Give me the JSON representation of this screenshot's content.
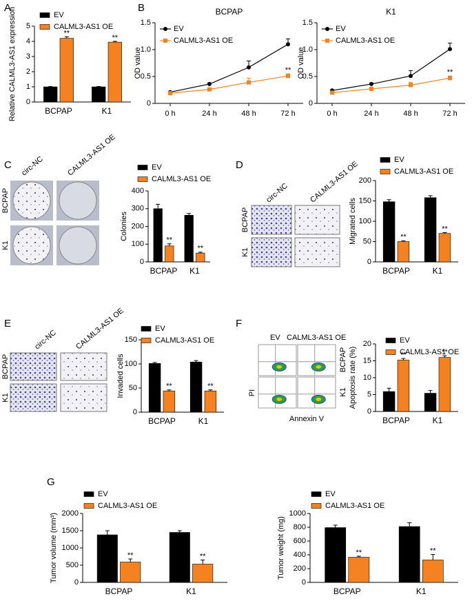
{
  "panel_labels": [
    "A",
    "B",
    "C",
    "D",
    "E",
    "F",
    "G"
  ],
  "image_panels": [
    {
      "columns": [
        "circ-NC",
        "CALML3-AS1 OE"
      ],
      "rows": [
        "BCPAP",
        "K1"
      ]
    },
    {
      "columns": [
        "circ-NC",
        "CALML3-AS1 OE"
      ],
      "rows": [
        "BCPAP",
        "K1"
      ]
    },
    {
      "columns": [
        "circ-NC",
        "CALML3-AS1 OE"
      ],
      "rows": [
        "BCPAP",
        "K1"
      ]
    },
    {
      "columns": [
        "EV",
        "CALML3-AS1 OE"
      ],
      "rows": [
        "BCPAP",
        "K1"
      ],
      "y_axis": "PI",
      "x_axis": "Annexin V"
    }
  ],
  "chart_data": [
    {
      "type": "bar",
      "ylabel": "Relative CALML3-AS1 expression",
      "categories": [
        "BCPAP",
        "K1"
      ],
      "series": [
        {
          "name": "EV",
          "color": "#000000",
          "values": [
            1,
            1
          ],
          "errors": [
            0.02,
            0.02
          ]
        },
        {
          "name": "CALML3-AS1 OE",
          "color": "#f58220",
          "values": [
            4.2,
            3.95
          ],
          "errors": [
            0.1,
            0.05
          ],
          "sig": [
            "**",
            "**"
          ]
        }
      ],
      "ylim": [
        0,
        5
      ],
      "yticks": [
        0,
        1,
        2,
        3,
        4,
        5
      ]
    },
    {
      "type": "line",
      "title": "BCPAP",
      "ylabel": "OD value",
      "categories": [
        "0 h",
        "24 h",
        "48 h",
        "72 h"
      ],
      "series": [
        {
          "name": "EV",
          "color": "#000000",
          "values": [
            0.21,
            0.36,
            0.67,
            1.1
          ],
          "errors": [
            0.01,
            0.02,
            0.12,
            0.1
          ]
        },
        {
          "name": "CALML3-AS1 OE",
          "color": "#f58220",
          "values": [
            0.19,
            0.26,
            0.39,
            0.51
          ],
          "errors": [
            0.01,
            0.02,
            0.08,
            0.04
          ],
          "sig": [
            null,
            null,
            null,
            "**"
          ]
        }
      ],
      "ylim": [
        0,
        1.5
      ],
      "yticks": [
        0,
        0.5,
        {
          "value": 1,
          "label": "1.0"
        },
        1.5
      ]
    },
    {
      "type": "line",
      "title": "K1",
      "ylabel": "OD value",
      "categories": [
        "0 h",
        "24 h",
        "48 h",
        "72 h"
      ],
      "series": [
        {
          "name": "EV",
          "color": "#000000",
          "values": [
            0.24,
            0.36,
            0.51,
            1.01
          ],
          "errors": [
            0.01,
            0.02,
            0.1,
            0.11
          ]
        },
        {
          "name": "CALML3-AS1 OE",
          "color": "#f58220",
          "values": [
            0.2,
            0.27,
            0.34,
            0.47
          ],
          "errors": [
            0.01,
            0.02,
            0.05,
            0.04
          ],
          "sig": [
            null,
            null,
            null,
            "**"
          ]
        }
      ],
      "ylim": [
        0,
        1.5
      ],
      "yticks": [
        0,
        0.5,
        {
          "value": 1,
          "label": "1.0"
        },
        1.5
      ]
    },
    {
      "type": "bar",
      "ylabel": "Colonies",
      "categories": [
        "BCPAP",
        "K1"
      ],
      "series": [
        {
          "name": "EV",
          "color": "#000000",
          "values": [
            300,
            263
          ],
          "errors": [
            25,
            10
          ]
        },
        {
          "name": "CALML3-AS1 OE",
          "color": "#f58220",
          "values": [
            90,
            50
          ],
          "errors": [
            12,
            5
          ],
          "sig": [
            "**",
            "**"
          ]
        }
      ],
      "ylim": [
        0,
        400
      ],
      "yticks": [
        0,
        100,
        200,
        300,
        400
      ]
    },
    {
      "type": "bar",
      "ylabel": "Migrated cells",
      "categories": [
        "BCPAP",
        "K1"
      ],
      "series": [
        {
          "name": "EV",
          "color": "#000000",
          "values": [
            148,
            158
          ],
          "errors": [
            5,
            5
          ]
        },
        {
          "name": "CALML3-AS1 OE",
          "color": "#f58220",
          "values": [
            50,
            70
          ],
          "errors": [
            2,
            2
          ],
          "sig": [
            "**",
            "**"
          ]
        }
      ],
      "ylim": [
        0,
        200
      ],
      "yticks": [
        0,
        50,
        100,
        150,
        200
      ]
    },
    {
      "type": "bar",
      "ylabel": "Invaded cells",
      "categories": [
        "BCPAP",
        "K1"
      ],
      "series": [
        {
          "name": "EV",
          "color": "#000000",
          "values": [
            101,
            104
          ],
          "errors": [
            2,
            3
          ]
        },
        {
          "name": "CALML3-AS1 OE",
          "color": "#f58220",
          "values": [
            44,
            44
          ],
          "errors": [
            2,
            2
          ],
          "sig": [
            "**",
            "**"
          ]
        }
      ],
      "ylim": [
        0,
        150
      ],
      "yticks": [
        0,
        50,
        100,
        150
      ]
    },
    {
      "type": "bar",
      "ylabel": "Apoptosis rate (%)",
      "categories": [
        "BCPAP",
        "K1"
      ],
      "series": [
        {
          "name": "EV",
          "color": "#000000",
          "values": [
            5.9,
            5.4
          ],
          "errors": [
            1,
            0.8
          ]
        },
        {
          "name": "CALML3-AS1 OE",
          "color": "#f58220",
          "values": [
            15.2,
            16
          ],
          "errors": [
            0.5,
            0.5
          ],
          "sig": [
            "**",
            "**"
          ]
        }
      ],
      "ylim": [
        0,
        20
      ],
      "yticks": [
        0,
        5,
        10,
        15,
        20
      ]
    },
    {
      "type": "bar",
      "ylabel": "Tumor volume (mm³)",
      "categories": [
        "BCPAP",
        "K1"
      ],
      "series": [
        {
          "name": "EV",
          "color": "#000000",
          "values": [
            1380,
            1450
          ],
          "errors": [
            120,
            50
          ]
        },
        {
          "name": "CALML3-AS1 OE",
          "color": "#f58220",
          "values": [
            590,
            530
          ],
          "errors": [
            90,
            120
          ],
          "sig": [
            "**",
            "**"
          ]
        }
      ],
      "ylim": [
        0,
        2000
      ],
      "yticks": [
        0,
        500,
        1000,
        1500,
        2000
      ]
    },
    {
      "type": "bar",
      "ylabel": "Tumor weight (mg)",
      "categories": [
        "BCPAP",
        "K1"
      ],
      "series": [
        {
          "name": "EV",
          "color": "#000000",
          "values": [
            795,
            810
          ],
          "errors": [
            35,
            55
          ]
        },
        {
          "name": "CALML3-AS1 OE",
          "color": "#f58220",
          "values": [
            365,
            325
          ],
          "errors": [
            15,
            80
          ],
          "sig": [
            "**",
            "**"
          ]
        }
      ],
      "ylim": [
        0,
        1000
      ],
      "yticks": [
        0,
        200,
        400,
        600,
        800,
        1000
      ]
    }
  ]
}
